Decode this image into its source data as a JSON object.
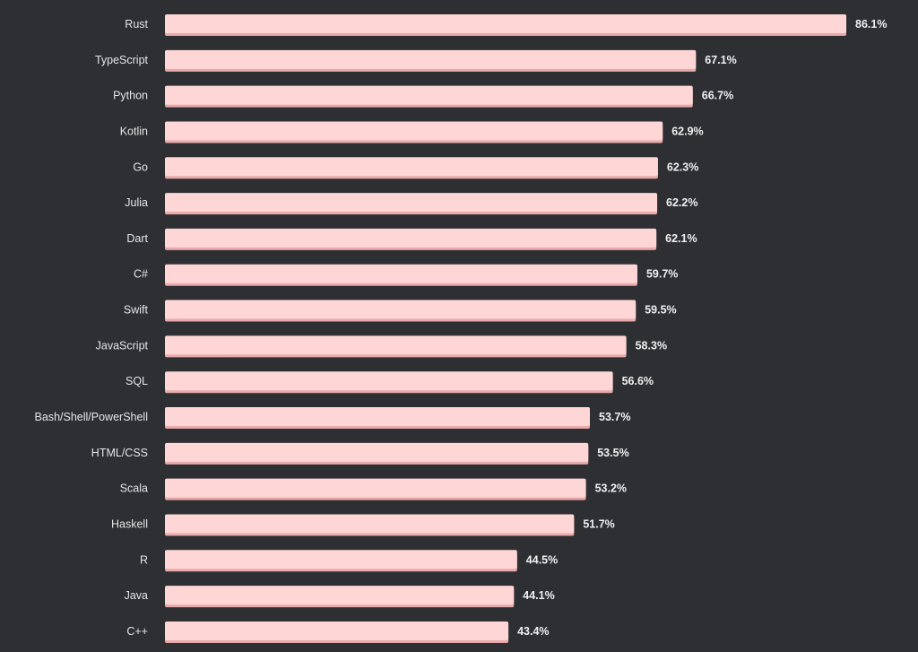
{
  "chart_data": {
    "type": "bar",
    "orientation": "horizontal",
    "title": "",
    "xlabel": "",
    "ylabel": "",
    "xlim": [
      0,
      86.1
    ],
    "value_suffix": "%",
    "colors": {
      "background": "#2d2f33",
      "bar": "#ffd6d6",
      "bar_shadow": "#e8aaaa",
      "label": "#e6e6e6",
      "value": "#f0f0f0"
    },
    "categories": [
      "Rust",
      "TypeScript",
      "Python",
      "Kotlin",
      "Go",
      "Julia",
      "Dart",
      "C#",
      "Swift",
      "JavaScript",
      "SQL",
      "Bash/Shell/PowerShell",
      "HTML/CSS",
      "Scala",
      "Haskell",
      "R",
      "Java",
      "C++"
    ],
    "values": [
      86.1,
      67.1,
      66.7,
      62.9,
      62.3,
      62.2,
      62.1,
      59.7,
      59.5,
      58.3,
      56.6,
      53.7,
      53.5,
      53.2,
      51.7,
      44.5,
      44.1,
      43.4
    ],
    "value_labels": [
      "86.1%",
      "67.1%",
      "66.7%",
      "62.9%",
      "62.3%",
      "62.2%",
      "62.1%",
      "59.7%",
      "59.5%",
      "58.3%",
      "56.6%",
      "53.7%",
      "53.5%",
      "53.2%",
      "51.7%",
      "44.5%",
      "44.1%",
      "43.4%"
    ]
  }
}
